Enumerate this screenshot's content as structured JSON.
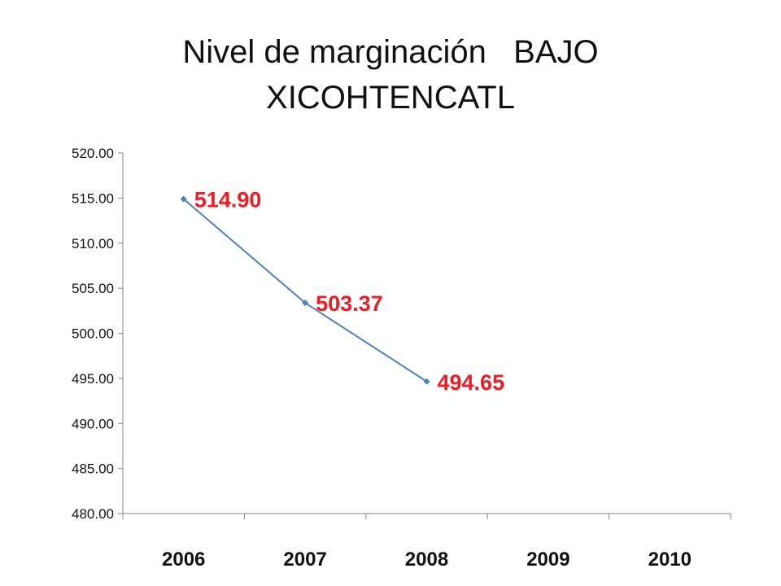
{
  "slide": {
    "title_line1": "Nivel de marginación   BAJO",
    "title_line2": "XICOHTENCATL"
  },
  "colors": {
    "series_line": "#4f81bd",
    "data_label": "#ee1c25",
    "axis": "#868686",
    "text": "#111111"
  },
  "chart_data": {
    "type": "line",
    "title": "Nivel de marginación   BAJO XICOHTENCATL",
    "xlabel": "",
    "ylabel": "",
    "categories": [
      "2006",
      "2007",
      "2008",
      "2009",
      "2010"
    ],
    "series": [
      {
        "values": [
          514.9,
          503.37,
          494.65,
          null,
          null
        ]
      }
    ],
    "data_labels": [
      "514.90",
      "503.37",
      "494.65"
    ],
    "ylim": [
      480,
      520
    ],
    "yticks": [
      "480.00",
      "485.00",
      "490.00",
      "495.00",
      "500.00",
      "505.00",
      "510.00",
      "515.00",
      "520.00"
    ],
    "grid": false,
    "legend": "none"
  }
}
